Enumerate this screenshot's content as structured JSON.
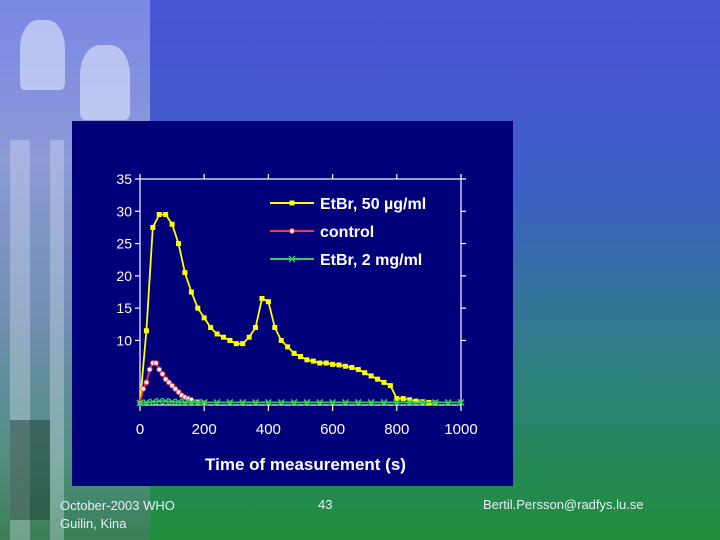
{
  "footer": {
    "left_line1": "October-2003 WHO",
    "left_line2": "Guilin, Kina",
    "center": "43",
    "right": "Bertil.Persson@radfys.lu.se"
  },
  "colors": {
    "panel_bg": "#00007a",
    "axis": "#ffffff",
    "series_etbr50": "#ffff00",
    "series_control": "#ff3344",
    "series_etbr2": "#33cc55"
  },
  "chart_data": {
    "type": "line",
    "title": "",
    "xlabel": "Time of measurement (s)",
    "ylabel": "",
    "xlim": [
      0,
      1000
    ],
    "ylim": [
      0,
      35
    ],
    "x_ticks": [
      0,
      200,
      400,
      600,
      800,
      1000
    ],
    "y_ticks": [
      10,
      15,
      20,
      25,
      30,
      35
    ],
    "grid": false,
    "legend_position": "top-right",
    "series": [
      {
        "name": "EtBr, 50 µg/ml",
        "marker": "square",
        "x": [
          0,
          20,
          40,
          60,
          80,
          100,
          120,
          140,
          160,
          180,
          200,
          220,
          240,
          260,
          280,
          300,
          320,
          340,
          360,
          380,
          400,
          420,
          440,
          460,
          480,
          500,
          520,
          540,
          560,
          580,
          600,
          620,
          640,
          660,
          680,
          700,
          720,
          740,
          760,
          780,
          800,
          820,
          840,
          860,
          880,
          900,
          920
        ],
        "y": [
          0.3,
          11.5,
          27.5,
          29.5,
          29.5,
          28.0,
          25.0,
          20.5,
          17.5,
          15.0,
          13.5,
          12.0,
          11.0,
          10.5,
          10.0,
          9.5,
          9.5,
          10.5,
          12.0,
          16.5,
          16.0,
          12.0,
          10.0,
          9.0,
          8.0,
          7.5,
          7.0,
          6.8,
          6.5,
          6.5,
          6.3,
          6.2,
          6.0,
          5.8,
          5.5,
          5.0,
          4.5,
          4.0,
          3.5,
          3.0,
          1.0,
          1.0,
          0.8,
          0.6,
          0.5,
          0.4,
          0.3
        ]
      },
      {
        "name": "control",
        "marker": "circle",
        "x": [
          0,
          10,
          20,
          30,
          40,
          50,
          60,
          70,
          80,
          90,
          100,
          110,
          120,
          130,
          140,
          150,
          160,
          180,
          200
        ],
        "y": [
          0.3,
          2.5,
          3.5,
          5.5,
          6.5,
          6.5,
          5.5,
          4.8,
          4.0,
          3.5,
          3.0,
          2.5,
          2.0,
          1.5,
          1.2,
          1.0,
          0.8,
          0.5,
          0.3
        ]
      },
      {
        "name": "EtBr, 2 mg/ml",
        "marker": "x",
        "x": [
          0,
          20,
          40,
          60,
          80,
          100,
          120,
          140,
          160,
          180,
          200,
          240,
          280,
          320,
          360,
          400,
          440,
          480,
          520,
          560,
          600,
          640,
          680,
          720,
          760,
          800,
          840,
          880,
          920,
          960,
          1000
        ],
        "y": [
          0.3,
          0.4,
          0.5,
          0.6,
          0.6,
          0.5,
          0.5,
          0.4,
          0.4,
          0.4,
          0.4,
          0.4,
          0.4,
          0.4,
          0.4,
          0.4,
          0.4,
          0.4,
          0.4,
          0.4,
          0.4,
          0.4,
          0.4,
          0.4,
          0.4,
          0.4,
          0.4,
          0.4,
          0.4,
          0.4,
          0.4
        ]
      }
    ]
  }
}
